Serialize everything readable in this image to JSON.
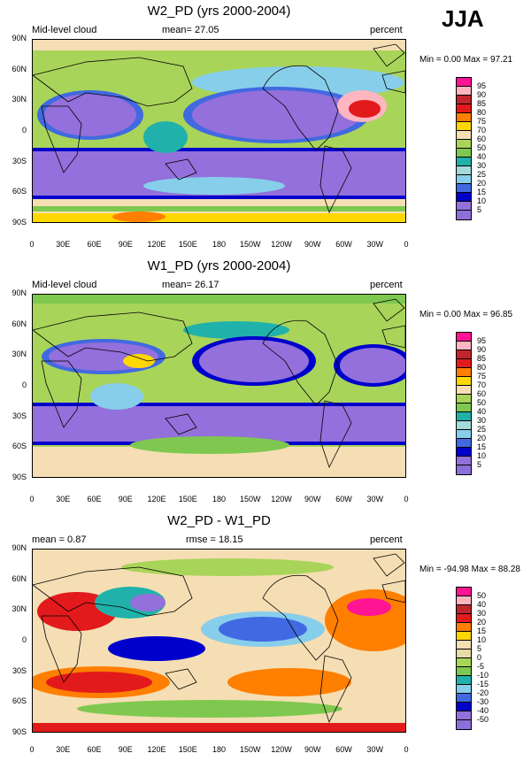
{
  "season": "JJA",
  "x_ticks": [
    "0",
    "30E",
    "60E",
    "90E",
    "120E",
    "150E",
    "180",
    "150W",
    "120W",
    "90W",
    "60W",
    "30W",
    "0"
  ],
  "y_ticks": [
    "90N",
    "60N",
    "30N",
    "0",
    "30S",
    "60S",
    "90S"
  ],
  "panels": [
    {
      "title": "W2_PD (yrs 2000-2004)",
      "left_label": "Mid-level cloud",
      "mean_label": "mean=  27.05",
      "right_label": "percent",
      "minmax": "Min =   0.00 Max =  97.21",
      "levels": [
        "95",
        "90",
        "85",
        "80",
        "75",
        "70",
        "60",
        "50",
        "40",
        "30",
        "25",
        "20",
        "15",
        "10",
        "5"
      ],
      "colors": [
        "#ff1493",
        "#ffb6c1",
        "#c0262c",
        "#e31a1c",
        "#ff7f00",
        "#ffd700",
        "#f5deb3",
        "#a8d45a",
        "#7ec850",
        "#20b2aa",
        "#a3d9d9",
        "#87ceeb",
        "#4169e1",
        "#0000cd",
        "#9370db",
        "#8c6fd8"
      ]
    },
    {
      "title": "W1_PD (yrs 2000-2004)",
      "left_label": "Mid-level cloud",
      "mean_label": "mean=  26.17",
      "right_label": "percent",
      "minmax": "Min =   0.00 Max =  96.85",
      "levels": [
        "95",
        "90",
        "85",
        "80",
        "75",
        "70",
        "60",
        "50",
        "40",
        "30",
        "25",
        "20",
        "15",
        "10",
        "5"
      ],
      "colors": [
        "#ff1493",
        "#ffb6c1",
        "#c0262c",
        "#e31a1c",
        "#ff7f00",
        "#ffd700",
        "#f5deb3",
        "#a8d45a",
        "#7ec850",
        "#20b2aa",
        "#a3d9d9",
        "#87ceeb",
        "#4169e1",
        "#0000cd",
        "#9370db",
        "#8c6fd8"
      ]
    },
    {
      "title": "W2_PD - W1_PD",
      "left_label": "mean =   0.87",
      "mean_label": "rmse =  18.15",
      "right_label": "percent",
      "minmax": "Min = -94.98 Max =  88.28",
      "levels": [
        "50",
        "40",
        "30",
        "20",
        "15",
        "10",
        "5",
        "0",
        "-5",
        "-10",
        "-15",
        "-20",
        "-30",
        "-40",
        "-50"
      ],
      "colors": [
        "#ff1493",
        "#ffb6c1",
        "#c0262c",
        "#e31a1c",
        "#ff7f00",
        "#ffd700",
        "#f5deb3",
        "#e8d9a8",
        "#a8d45a",
        "#7ec850",
        "#20b2aa",
        "#87ceeb",
        "#4169e1",
        "#0000cd",
        "#9370db",
        "#8c6fd8"
      ]
    }
  ]
}
